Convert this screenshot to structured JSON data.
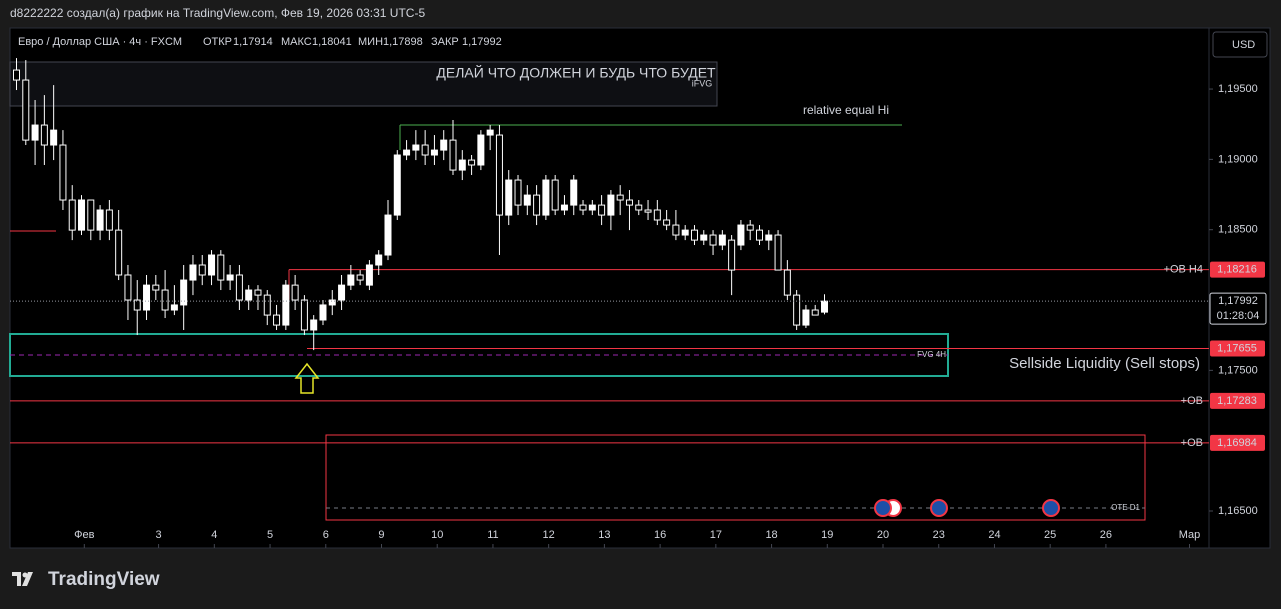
{
  "header": "d8222222 создал(а) график на TradingView.com, Фев 19, 2026 03:31 UTC-5",
  "currency": "USD",
  "brand": "TradingView",
  "chart_data": {
    "type": "candlestick",
    "title": "Евро / Доллар США · 4ч · FXCM",
    "legend_values": [
      {
        "label": "ОТКР",
        "value": "1,17914"
      },
      {
        "label": "МАКС",
        "value": "1,18041"
      },
      {
        "label": "МИН",
        "value": "1,17898"
      },
      {
        "label": "ЗАКР",
        "value": "1,17992"
      }
    ],
    "up_color": "#ffffff",
    "down_color": "#000000",
    "wick_color": "#ffffff",
    "ohlc": [
      [
        1.19635,
        1.1972,
        1.19493,
        1.19564
      ],
      [
        1.19564,
        1.19706,
        1.19102,
        1.19137
      ],
      [
        1.19137,
        1.19422,
        1.1896,
        1.19244
      ],
      [
        1.19244,
        1.19457,
        1.1896,
        1.19102
      ],
      [
        1.19102,
        1.19528,
        1.18995,
        1.19208
      ],
      [
        1.19102,
        1.19208,
        1.1864,
        1.18711
      ],
      [
        1.18711,
        1.18817,
        1.18426,
        1.18497
      ],
      [
        1.18497,
        1.18746,
        1.18462,
        1.18711
      ],
      [
        1.18711,
        1.18711,
        1.18426,
        1.18497
      ],
      [
        1.18497,
        1.18675,
        1.18426,
        1.1864
      ],
      [
        1.1864,
        1.18711,
        1.18426,
        1.18497
      ],
      [
        1.18497,
        1.1864,
        1.18142,
        1.18178
      ],
      [
        1.18178,
        1.18249,
        1.17858,
        1.18
      ],
      [
        1.18,
        1.18142,
        1.17751,
        1.17929
      ],
      [
        1.17929,
        1.18178,
        1.17858,
        1.18106
      ],
      [
        1.18106,
        1.18178,
        1.18,
        1.18071
      ],
      [
        1.18071,
        1.18213,
        1.17872,
        1.17929
      ],
      [
        1.17929,
        1.18106,
        1.17893,
        1.17965
      ],
      [
        1.17965,
        1.18249,
        1.17787,
        1.18142
      ],
      [
        1.18142,
        1.1832,
        1.18035,
        1.18249
      ],
      [
        1.18249,
        1.1832,
        1.18106,
        1.18178
      ],
      [
        1.18178,
        1.18355,
        1.18106,
        1.1832
      ],
      [
        1.1832,
        1.18355,
        1.18071,
        1.18142
      ],
      [
        1.18142,
        1.18249,
        1.18071,
        1.18178
      ],
      [
        1.18178,
        1.18249,
        1.17929,
        1.18
      ],
      [
        1.18,
        1.18106,
        1.17929,
        1.18071
      ],
      [
        1.18071,
        1.18106,
        1.17929,
        1.18035
      ],
      [
        1.18035,
        1.18071,
        1.17822,
        1.17893
      ],
      [
        1.17893,
        1.17965,
        1.17787,
        1.17822
      ],
      [
        1.17822,
        1.18142,
        1.17787,
        1.18106
      ],
      [
        1.18106,
        1.18178,
        1.17929,
        1.18
      ],
      [
        1.18,
        1.18035,
        1.17751,
        1.17787
      ],
      [
        1.17787,
        1.17893,
        1.17644,
        1.17858
      ],
      [
        1.17858,
        1.18,
        1.17822,
        1.17965
      ],
      [
        1.17965,
        1.18071,
        1.17893,
        1.18
      ],
      [
        1.18,
        1.18178,
        1.17929,
        1.18106
      ],
      [
        1.18106,
        1.18249,
        1.18071,
        1.18178
      ],
      [
        1.18178,
        1.18213,
        1.18106,
        1.18142
      ],
      [
        1.18106,
        1.18284,
        1.18071,
        1.18249
      ],
      [
        1.18249,
        1.18355,
        1.18178,
        1.1832
      ],
      [
        1.1832,
        1.18711,
        1.18284,
        1.18604
      ],
      [
        1.18604,
        1.19066,
        1.18569,
        1.19031
      ],
      [
        1.19031,
        1.19137,
        1.18995,
        1.19066
      ],
      [
        1.19066,
        1.19208,
        1.18995,
        1.19102
      ],
      [
        1.19102,
        1.19208,
        1.1896,
        1.19031
      ],
      [
        1.19031,
        1.19173,
        1.1896,
        1.19066
      ],
      [
        1.19066,
        1.19208,
        1.18995,
        1.19137
      ],
      [
        1.19137,
        1.1928,
        1.18889,
        1.18924
      ],
      [
        1.18924,
        1.19066,
        1.18853,
        1.18995
      ],
      [
        1.18995,
        1.19031,
        1.18889,
        1.1896
      ],
      [
        1.1896,
        1.19208,
        1.18924,
        1.19173
      ],
      [
        1.19173,
        1.19244,
        1.19066,
        1.19208
      ],
      [
        1.19173,
        1.19244,
        1.1832,
        1.18604
      ],
      [
        1.18604,
        1.18924,
        1.18533,
        1.18853
      ],
      [
        1.18853,
        1.18889,
        1.18604,
        1.18675
      ],
      [
        1.18675,
        1.18817,
        1.18604,
        1.18746
      ],
      [
        1.18746,
        1.18817,
        1.18533,
        1.18604
      ],
      [
        1.18604,
        1.18889,
        1.18569,
        1.18853
      ],
      [
        1.18853,
        1.18889,
        1.18604,
        1.1864
      ],
      [
        1.1864,
        1.18746,
        1.18604,
        1.18675
      ],
      [
        1.18675,
        1.18889,
        1.18604,
        1.18853
      ],
      [
        1.18675,
        1.18711,
        1.18604,
        1.1864
      ],
      [
        1.1864,
        1.18711,
        1.18604,
        1.18675
      ],
      [
        1.18675,
        1.18746,
        1.18533,
        1.18604
      ],
      [
        1.18604,
        1.18782,
        1.18497,
        1.18746
      ],
      [
        1.18746,
        1.18817,
        1.18604,
        1.18711
      ],
      [
        1.18711,
        1.18782,
        1.18497,
        1.18675
      ],
      [
        1.18675,
        1.18711,
        1.18604,
        1.1864
      ],
      [
        1.1864,
        1.18711,
        1.18569,
        1.18625
      ],
      [
        1.1864,
        1.18711,
        1.18533,
        1.18569
      ],
      [
        1.18569,
        1.1864,
        1.18497,
        1.18533
      ],
      [
        1.18533,
        1.1864,
        1.18426,
        1.18462
      ],
      [
        1.18462,
        1.18533,
        1.18426,
        1.18497
      ],
      [
        1.18497,
        1.18533,
        1.18391,
        1.18426
      ],
      [
        1.18426,
        1.18497,
        1.18391,
        1.18462
      ],
      [
        1.18462,
        1.18497,
        1.1832,
        1.18391
      ],
      [
        1.18391,
        1.18497,
        1.18355,
        1.18462
      ],
      [
        1.18426,
        1.18462,
        1.18035,
        1.18213
      ],
      [
        1.18391,
        1.18569,
        1.18355,
        1.18533
      ],
      [
        1.18533,
        1.18569,
        1.18426,
        1.18497
      ],
      [
        1.18497,
        1.18533,
        1.18391,
        1.18426
      ],
      [
        1.18426,
        1.18497,
        1.18355,
        1.18462
      ],
      [
        1.18462,
        1.18497,
        1.18213,
        1.18213
      ],
      [
        1.18213,
        1.18284,
        1.18,
        1.18035
      ],
      [
        1.18035,
        1.18071,
        1.17787,
        1.17822
      ],
      [
        1.17822,
        1.17965,
        1.17801,
        1.17929
      ],
      [
        1.17929,
        1.17965,
        1.17893,
        1.17893
      ],
      [
        1.17914,
        1.18041,
        1.17898,
        1.17992
      ]
    ],
    "xlim": [
      -0.7,
      128.4
    ],
    "xticks": [
      {
        "value": 7.3,
        "label": "Фев"
      },
      {
        "value": 15.3,
        "label": "3"
      },
      {
        "value": 21.3,
        "label": "4"
      },
      {
        "value": 27.3,
        "label": "5"
      },
      {
        "value": 33.3,
        "label": "6"
      },
      {
        "value": 39.3,
        "label": "9"
      },
      {
        "value": 45.3,
        "label": "10"
      },
      {
        "value": 51.3,
        "label": "11"
      },
      {
        "value": 57.3,
        "label": "12"
      },
      {
        "value": 63.3,
        "label": "13"
      },
      {
        "value": 69.3,
        "label": "16"
      },
      {
        "value": 75.3,
        "label": "17"
      },
      {
        "value": 81.3,
        "label": "18"
      },
      {
        "value": 87.3,
        "label": "19"
      },
      {
        "value": 93.3,
        "label": "20"
      },
      {
        "value": 99.3,
        "label": "23"
      },
      {
        "value": 105.3,
        "label": "24"
      },
      {
        "value": 111.3,
        "label": "25"
      },
      {
        "value": 117.3,
        "label": "26"
      },
      {
        "value": 126.3,
        "label": "Мар"
      }
    ],
    "ylim": [
      1.16237,
      1.19934
    ],
    "yticks": [
      {
        "value": 1.195,
        "label": "1,19500"
      },
      {
        "value": 1.19,
        "label": "1,19000"
      },
      {
        "value": 1.185,
        "label": "1,18500"
      },
      {
        "value": 1.175,
        "label": "1,17500"
      },
      {
        "value": 1.165,
        "label": "1,16500"
      }
    ],
    "last_price": {
      "value": 1.17992,
      "label": "1,17992",
      "countdown": "01:28:04"
    },
    "levels": [
      {
        "name": "+OB H4",
        "value": 1.18216,
        "label": "1,18216"
      },
      {
        "value": 1.17655,
        "label": "1,17655"
      },
      {
        "name": "+OB",
        "value": 1.17283,
        "label": "1,17283"
      },
      {
        "name": "+OB",
        "value": 1.16984,
        "label": "1,16984"
      }
    ],
    "annotations": {
      "motto": "ДЕЛАЙ ЧТО ДОЛЖЕН И БУДЬ ЧТО БУДЕТ",
      "ifvg": "iFVG",
      "equal_hi": "relative equal Hi",
      "fvg": "FVG 4H",
      "sellside": "Sellside Liquidity (Sell stops)",
      "ote": "OTE D1"
    }
  }
}
